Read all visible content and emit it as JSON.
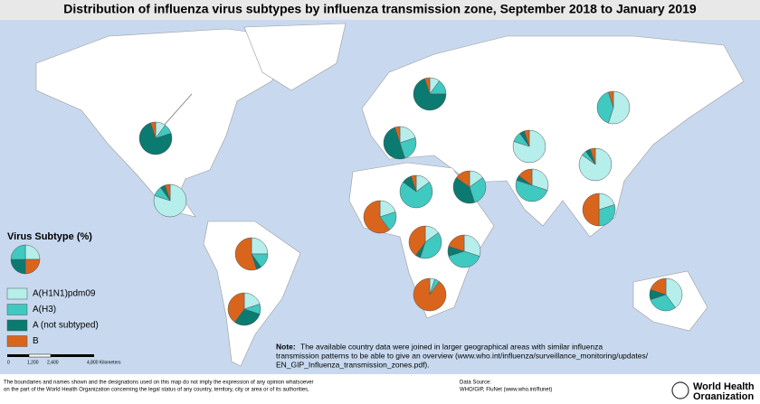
{
  "title": "Distribution of influenza virus subtypes by influenza transmission zone, September 2018 to January 2019",
  "legend": {
    "title": "Virus Subtype (%)",
    "items": [
      {
        "label": "A(H1N1)pdm09",
        "color": "#b5eeea"
      },
      {
        "label": "A(H3)",
        "color": "#3fc9c0"
      },
      {
        "label": "A (not subtyped)",
        "color": "#0b7a70"
      },
      {
        "label": "B",
        "color": "#d9651d"
      }
    ]
  },
  "scale": {
    "ticks": [
      "0",
      "1,200",
      "2,400",
      "4,800 Kilometers"
    ]
  },
  "note": {
    "label": "Note:",
    "lines": [
      "The available country data were joined in larger geographical areas with similar influenza",
      "transmission patterns to be able to give an overview (www.who.int/influenza/surveillance_monitoring/updates/",
      "EN_GIP_Influenza_transmission_zones.pdf)."
    ]
  },
  "disclaimer": [
    "The boundaries and names shown and the designations used on this map do not imply the expression of any opinion whatsoever",
    "on the part of the World Health Organization concerning the legal status of any country, territory, city or area or of its authorities,"
  ],
  "source": {
    "label": "Data Source:",
    "text": "WHO/GIP, FluNet (www.who.int/flunet)"
  },
  "logo": [
    "World Health",
    "Organization"
  ],
  "zones": [
    {
      "values": [
        10,
        10,
        75,
        5
      ]
    },
    {
      "values": [
        80,
        10,
        5,
        5
      ]
    },
    {
      "values": [
        25,
        15,
        5,
        55
      ]
    },
    {
      "values": [
        20,
        10,
        30,
        40
      ]
    },
    {
      "values": [
        10,
        15,
        70,
        5
      ]
    },
    {
      "values": [
        20,
        25,
        50,
        5
      ]
    },
    {
      "values": [
        15,
        70,
        10,
        5
      ]
    },
    {
      "values": [
        15,
        30,
        40,
        15
      ]
    },
    {
      "values": [
        30,
        50,
        5,
        15
      ]
    },
    {
      "values": [
        80,
        10,
        5,
        5
      ]
    },
    {
      "values": [
        85,
        5,
        5,
        5
      ]
    },
    {
      "values": [
        55,
        40,
        0,
        5
      ]
    },
    {
      "values": [
        20,
        30,
        0,
        50
      ]
    },
    {
      "values": [
        20,
        20,
        0,
        60
      ]
    },
    {
      "values": [
        15,
        40,
        5,
        40
      ]
    },
    {
      "values": [
        30,
        40,
        10,
        20
      ]
    },
    {
      "values": [
        5,
        5,
        0,
        90
      ]
    },
    {
      "values": [
        40,
        30,
        10,
        20
      ]
    }
  ]
}
